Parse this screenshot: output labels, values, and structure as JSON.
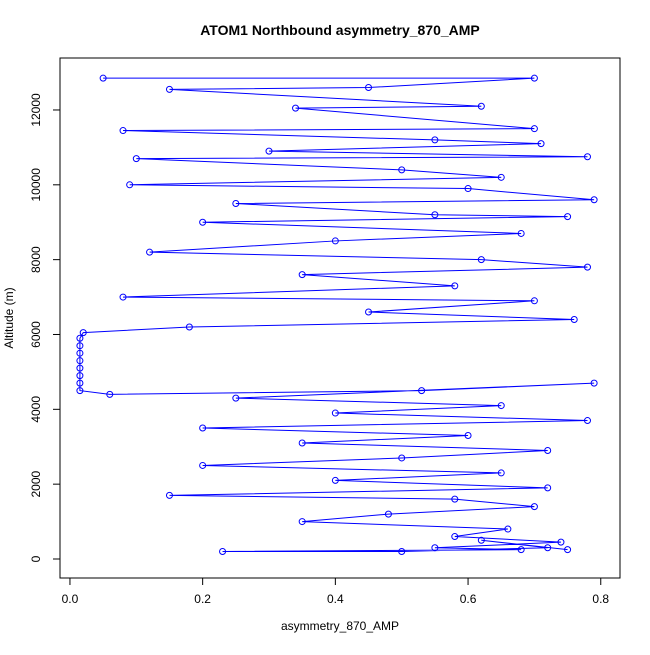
{
  "chart_data": {
    "type": "line",
    "title": "ATOM1 Northbound asymmetry_870_AMP",
    "x_label": "asymmetry_870_AMP",
    "y_label": "Altitude (m)",
    "color": "#0000ff",
    "marker": "circle",
    "xlim": [
      -0.015,
      0.829
    ],
    "ylim": [
      -508,
      13389
    ],
    "xticks": [
      {
        "value": 0,
        "label": "0.0"
      },
      {
        "value": 0.2,
        "label": "0.2"
      },
      {
        "value": 0.4,
        "label": "0.4"
      },
      {
        "value": 0.6,
        "label": "0.6"
      },
      {
        "value": 0.8,
        "label": "0.8"
      }
    ],
    "yticks": [
      0,
      2000,
      4000,
      6000,
      8000,
      10000,
      12000
    ],
    "x": [
      0.05,
      0.7,
      0.45,
      0.15,
      0.62,
      0.34,
      0.7,
      0.08,
      0.55,
      0.71,
      0.3,
      0.78,
      0.1,
      0.5,
      0.65,
      0.09,
      0.6,
      0.79,
      0.25,
      0.55,
      0.75,
      0.2,
      0.68,
      0.4,
      0.12,
      0.62,
      0.78,
      0.35,
      0.58,
      0.08,
      0.7,
      0.45,
      0.76,
      0.18,
      0.02,
      0.015,
      0.015,
      0.015,
      0.015,
      0.015,
      0.015,
      0.015,
      0.015,
      0.06,
      0.53,
      0.79,
      0.25,
      0.65,
      0.4,
      0.78,
      0.2,
      0.6,
      0.35,
      0.72,
      0.5,
      0.2,
      0.65,
      0.4,
      0.72,
      0.15,
      0.58,
      0.7,
      0.48,
      0.35,
      0.66,
      0.58,
      0.74,
      0.55,
      0.68,
      0.23,
      0.5,
      0.72,
      0.62,
      0.75
    ],
    "values": [
      12850,
      12850,
      12600,
      12550,
      12100,
      12050,
      11500,
      11450,
      11200,
      11100,
      10900,
      10750,
      10700,
      10400,
      10200,
      10000,
      9900,
      9600,
      9500,
      9200,
      9150,
      9000,
      8700,
      8500,
      8200,
      8000,
      7800,
      7600,
      7300,
      7000,
      6900,
      6600,
      6400,
      6200,
      6050,
      5900,
      5700,
      5500,
      5300,
      5100,
      4900,
      4700,
      4500,
      4400,
      4500,
      4700,
      4300,
      4100,
      3900,
      3700,
      3500,
      3300,
      3100,
      2900,
      2700,
      2500,
      2300,
      2100,
      1900,
      1700,
      1600,
      1400,
      1200,
      1000,
      800,
      600,
      450,
      300,
      250,
      200,
      200,
      300,
      500,
      250
    ]
  }
}
